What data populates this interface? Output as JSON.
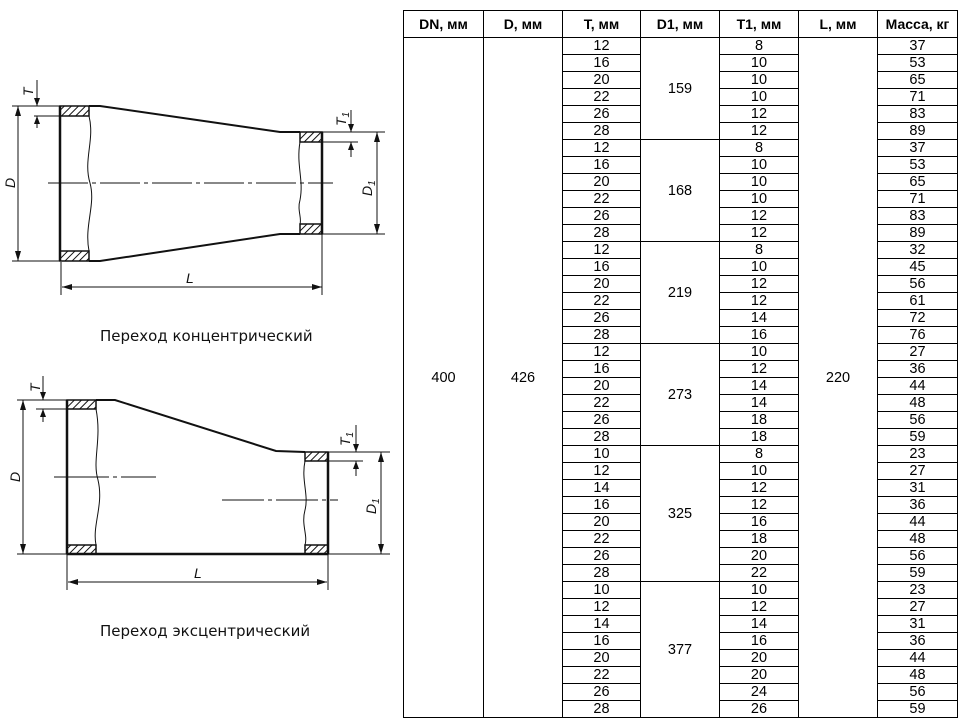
{
  "drawings": {
    "concentric_caption": "Переход концентрический",
    "eccentric_caption": "Переход эксцентрический",
    "labels": {
      "D": "D",
      "T": "T",
      "L": "L",
      "D1": "D",
      "D1_sub": "1",
      "T1": "T",
      "T1_sub": "1"
    }
  },
  "table": {
    "headers": [
      "DN, мм",
      "D, мм",
      "T, мм",
      "D1, мм",
      "T1, мм",
      "L, мм",
      "Масса, кг"
    ],
    "dn": "400",
    "d": "426",
    "l": "220",
    "groups": [
      {
        "d1": "159",
        "rows": [
          [
            "12",
            "8",
            "37"
          ],
          [
            "16",
            "10",
            "53"
          ],
          [
            "20",
            "10",
            "65"
          ],
          [
            "22",
            "10",
            "71"
          ],
          [
            "26",
            "12",
            "83"
          ],
          [
            "28",
            "12",
            "89"
          ]
        ]
      },
      {
        "d1": "168",
        "rows": [
          [
            "12",
            "8",
            "37"
          ],
          [
            "16",
            "10",
            "53"
          ],
          [
            "20",
            "10",
            "65"
          ],
          [
            "22",
            "10",
            "71"
          ],
          [
            "26",
            "12",
            "83"
          ],
          [
            "28",
            "12",
            "89"
          ]
        ]
      },
      {
        "d1": "219",
        "rows": [
          [
            "12",
            "8",
            "32"
          ],
          [
            "16",
            "10",
            "45"
          ],
          [
            "20",
            "12",
            "56"
          ],
          [
            "22",
            "12",
            "61"
          ],
          [
            "26",
            "14",
            "72"
          ],
          [
            "28",
            "16",
            "76"
          ]
        ]
      },
      {
        "d1": "273",
        "rows": [
          [
            "12",
            "10",
            "27"
          ],
          [
            "16",
            "12",
            "36"
          ],
          [
            "20",
            "14",
            "44"
          ],
          [
            "22",
            "14",
            "48"
          ],
          [
            "26",
            "18",
            "56"
          ],
          [
            "28",
            "18",
            "59"
          ]
        ]
      },
      {
        "d1": "325",
        "rows": [
          [
            "10",
            "8",
            "23"
          ],
          [
            "12",
            "10",
            "27"
          ],
          [
            "14",
            "12",
            "31"
          ],
          [
            "16",
            "12",
            "36"
          ],
          [
            "20",
            "16",
            "44"
          ],
          [
            "22",
            "18",
            "48"
          ],
          [
            "26",
            "20",
            "56"
          ],
          [
            "28",
            "22",
            "59"
          ]
        ]
      },
      {
        "d1": "377",
        "rows": [
          [
            "10",
            "10",
            "23"
          ],
          [
            "12",
            "12",
            "27"
          ],
          [
            "14",
            "14",
            "31"
          ],
          [
            "16",
            "16",
            "36"
          ],
          [
            "20",
            "20",
            "44"
          ],
          [
            "22",
            "20",
            "48"
          ],
          [
            "26",
            "24",
            "56"
          ],
          [
            "28",
            "26",
            "59"
          ]
        ]
      }
    ]
  }
}
